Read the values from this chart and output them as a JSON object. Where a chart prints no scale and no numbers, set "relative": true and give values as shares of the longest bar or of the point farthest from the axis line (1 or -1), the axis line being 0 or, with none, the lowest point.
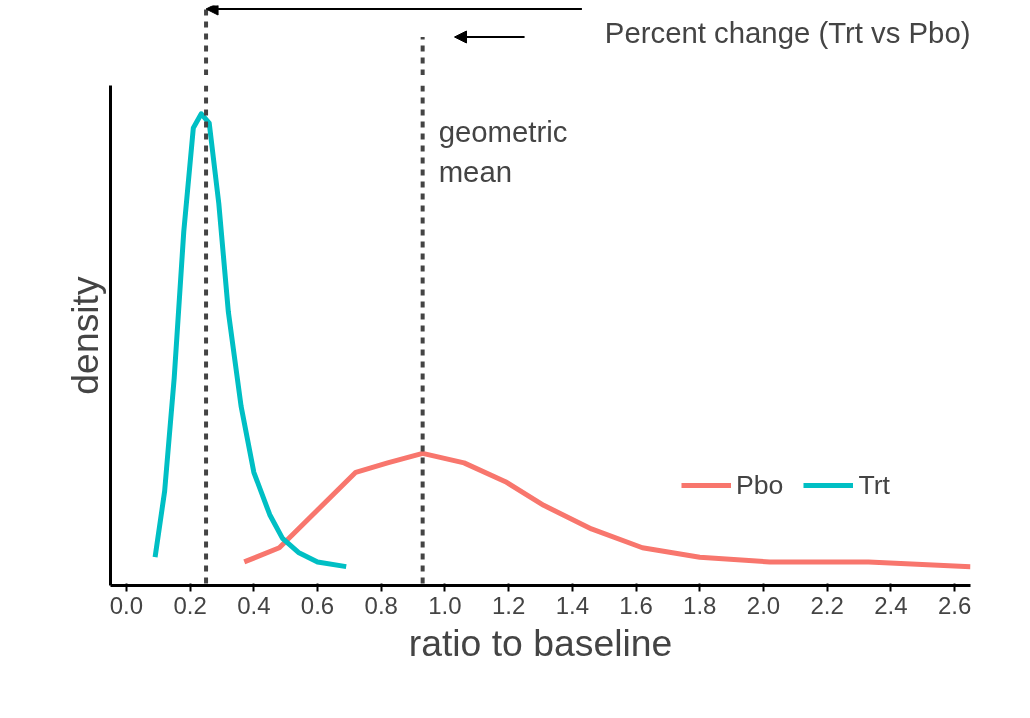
{
  "chart_data": {
    "type": "line",
    "relative": true,
    "xlabel": "ratio to baseline",
    "ylabel": "density",
    "xlim": [
      -0.05,
      2.65
    ],
    "xticks": [
      {
        "value": 0,
        "label": "0.0"
      },
      {
        "value": 0.2,
        "label": "0.2"
      },
      {
        "value": 0.4,
        "label": "0.4"
      },
      {
        "value": 0.6,
        "label": "0.6"
      },
      {
        "value": 0.8,
        "label": "0.8"
      },
      {
        "value": 1,
        "label": "1.0"
      },
      {
        "value": 1.2,
        "label": "1.2"
      },
      {
        "value": 1.4,
        "label": "1.4"
      },
      {
        "value": 1.6,
        "label": "1.6"
      },
      {
        "value": 1.8,
        "label": "1.8"
      },
      {
        "value": 2,
        "label": "2.0"
      },
      {
        "value": 2.2,
        "label": "2.2"
      },
      {
        "value": 2.4,
        "label": "2.4"
      },
      {
        "value": 2.6,
        "label": "2.6"
      }
    ],
    "series": [
      {
        "name": "Pbo",
        "color": "#f8766d",
        "x": [
          0.37,
          0.48,
          0.6,
          0.72,
          0.82,
          0.93,
          1.06,
          1.19,
          1.31,
          1.46,
          1.62,
          1.8,
          2.02,
          2.33,
          2.65
        ],
        "values": [
          0.05,
          0.08,
          0.16,
          0.24,
          0.26,
          0.28,
          0.26,
          0.22,
          0.17,
          0.12,
          0.08,
          0.06,
          0.05,
          0.05,
          0.04
        ]
      },
      {
        "name": "Trt",
        "color": "#00bfc4",
        "x": [
          0.09,
          0.12,
          0.15,
          0.18,
          0.21,
          0.235,
          0.26,
          0.29,
          0.32,
          0.36,
          0.4,
          0.45,
          0.49,
          0.54,
          0.6,
          0.69
        ],
        "values": [
          0.06,
          0.2,
          0.44,
          0.75,
          0.97,
          1.0,
          0.98,
          0.81,
          0.58,
          0.38,
          0.24,
          0.15,
          0.1,
          0.07,
          0.05,
          0.04
        ]
      }
    ],
    "ref_lines": [
      {
        "axis": "x",
        "value": 0.25,
        "label": null,
        "color": "#444444",
        "line_style": "dashed"
      },
      {
        "axis": "x",
        "value": 0.93,
        "label": "geometric mean",
        "color": "#444444",
        "line_style": "dashed"
      }
    ],
    "annotations": [
      "Percent change (Trt vs Pbo)"
    ],
    "legend": "bottom right",
    "grid": false,
    "line_style": "solid",
    "marker": "none"
  }
}
